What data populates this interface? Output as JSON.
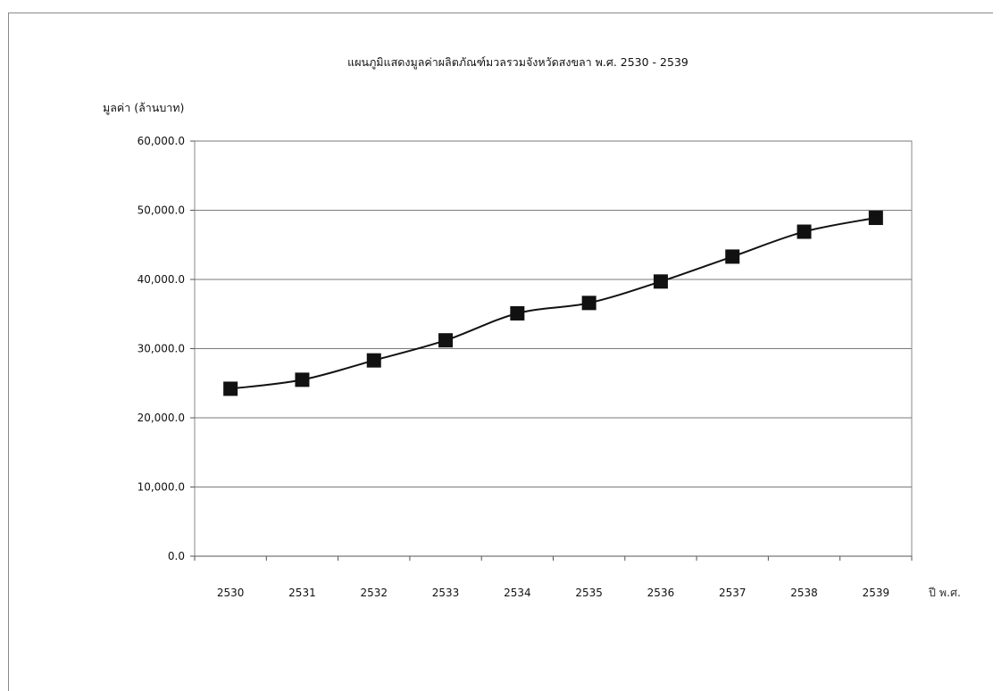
{
  "chart_data": {
    "type": "line",
    "title": "แผนภูมิแสดงมูลค่าผลิตภัณฑ์มวลรวมจังหวัดสงขลา พ.ศ. 2530 - 2539",
    "ylabel": "มูลค่า (ล้านบาท)",
    "xlabel": "ปี พ.ศ.",
    "categories": [
      "2530",
      "2531",
      "2532",
      "2533",
      "2534",
      "2535",
      "2536",
      "2537",
      "2538",
      "2539"
    ],
    "series": [
      {
        "values": [
          24200,
          25500,
          28300,
          31200,
          35100,
          36600,
          39700,
          43300,
          46900,
          48900
        ],
        "color": "#111111",
        "marker": "square"
      }
    ],
    "ylim": [
      0,
      60000
    ],
    "yticks": [
      0,
      10000,
      20000,
      30000,
      40000,
      50000,
      60000
    ],
    "ytick_labels": [
      "0.0",
      "10,000.0",
      "20,000.0",
      "30,000.0",
      "40,000.0",
      "50,000.0",
      "60,000.0"
    ],
    "grid": true,
    "legend": "none"
  }
}
